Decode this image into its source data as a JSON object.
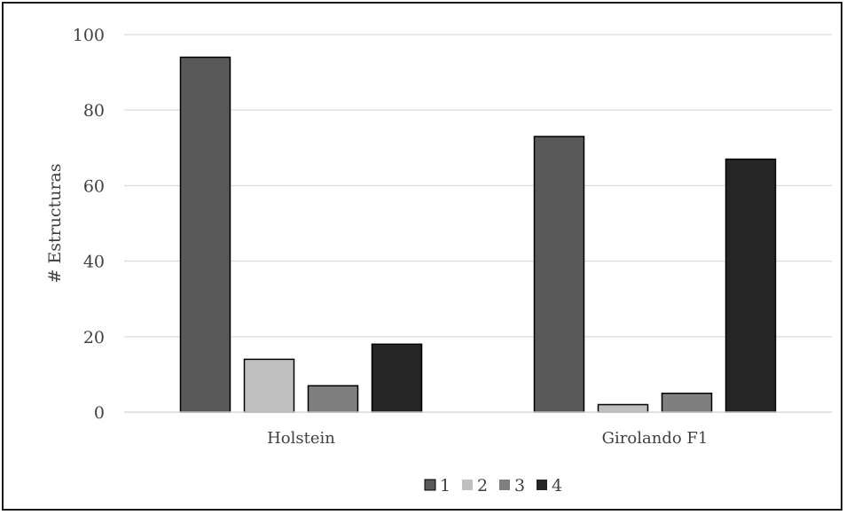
{
  "chart_data": {
    "type": "bar",
    "categories": [
      "Holstein",
      "Girolando F1"
    ],
    "series": [
      {
        "name": "1",
        "values": [
          94,
          73
        ],
        "color": "#595959"
      },
      {
        "name": "2",
        "values": [
          14,
          2
        ],
        "color": "#bfbfbf"
      },
      {
        "name": "3",
        "values": [
          7,
          5
        ],
        "color": "#7f7f7f"
      },
      {
        "name": "4",
        "values": [
          18,
          67
        ],
        "color": "#262626"
      }
    ],
    "title": "",
    "xlabel": "",
    "ylabel": "# Estructuras",
    "ylim": [
      0,
      100
    ],
    "yticks": [
      "0",
      "20",
      "40",
      "60",
      "80",
      "100"
    ],
    "grid": true,
    "legend_position": "bottom"
  }
}
